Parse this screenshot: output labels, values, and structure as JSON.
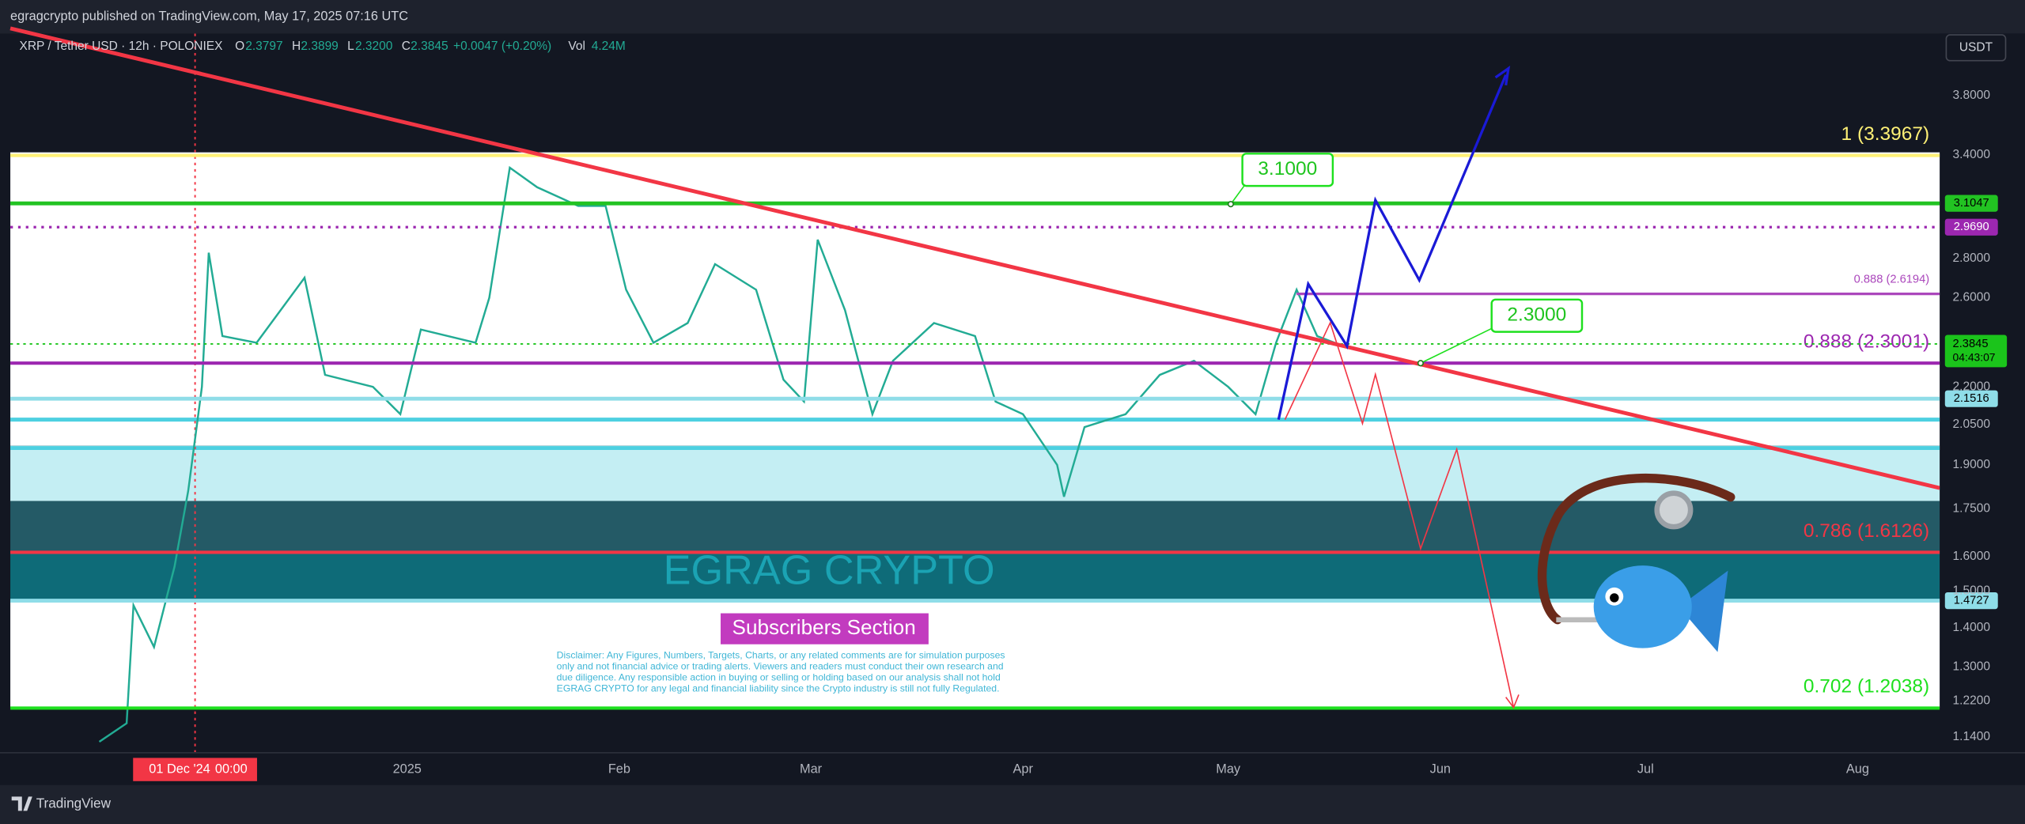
{
  "chart_data": {
    "type": "line",
    "published": "egragcrypto published on TradingView.com, May 17, 2025 07:16 UTC",
    "title": "XRP / Tether USD · 12h · POLONIEX",
    "ohlc": [
      {
        "key": "O",
        "text": "2.3797"
      },
      {
        "key": "H",
        "text": "2.3899"
      },
      {
        "key": "L",
        "text": "2.3200"
      },
      {
        "key": "C",
        "text": "2.3845"
      }
    ],
    "change": "+0.0047 (+0.20%)",
    "volume": {
      "key": "Vol",
      "text": "4.24M"
    },
    "currency": "USDT",
    "x": [
      "2024-11-17",
      "2024-11-21",
      "2024-11-22",
      "2024-11-25",
      "2024-11-28",
      "2024-11-30",
      "2024-12-02",
      "2024-12-03",
      "2024-12-05",
      "2024-12-10",
      "2024-12-17",
      "2024-12-20",
      "2024-12-27",
      "2024-12-31",
      "2025-01-03",
      "2025-01-11",
      "2025-01-13",
      "2025-01-16",
      "2025-01-20",
      "2025-01-26",
      "2025-01-30",
      "2025-02-02",
      "2025-02-06",
      "2025-02-11",
      "2025-02-15",
      "2025-02-21",
      "2025-02-25",
      "2025-02-28",
      "2025-03-02",
      "2025-03-06",
      "2025-03-10",
      "2025-03-13",
      "2025-03-19",
      "2025-03-25",
      "2025-03-28",
      "2025-04-01",
      "2025-04-06",
      "2025-04-07",
      "2025-04-10",
      "2025-04-16",
      "2025-04-21",
      "2025-04-26",
      "2025-05-01",
      "2025-05-05",
      "2025-05-08",
      "2025-05-11",
      "2025-05-14",
      "2025-05-17"
    ],
    "series": [
      {
        "name": "XRP / Tether USD",
        "color": "#22ab94",
        "values": [
          1.13,
          1.17,
          1.46,
          1.35,
          1.57,
          1.81,
          2.2,
          2.83,
          2.42,
          2.39,
          2.7,
          2.25,
          2.2,
          2.09,
          2.45,
          2.39,
          2.6,
          3.32,
          3.2,
          3.09,
          3.09,
          2.64,
          2.39,
          2.48,
          2.77,
          2.64,
          2.23,
          2.14,
          2.9,
          2.54,
          2.09,
          2.31,
          2.48,
          2.42,
          2.14,
          2.09,
          1.9,
          1.79,
          2.04,
          2.09,
          2.25,
          2.31,
          2.2,
          2.09,
          2.39,
          2.64,
          2.42,
          2.3845
        ]
      }
    ],
    "xlim": [
      "2024-11-04",
      "2025-08-13"
    ],
    "xticks": [
      {
        "value": "2025-01-01",
        "label": "2025"
      },
      {
        "value": "2025-02-01",
        "label": "Feb"
      },
      {
        "value": "2025-03-01",
        "label": "Mar"
      },
      {
        "value": "2025-04-01",
        "label": "Apr"
      },
      {
        "value": "2025-05-01",
        "label": "May"
      },
      {
        "value": "2025-06-01",
        "label": "Jun"
      },
      {
        "value": "2025-07-01",
        "label": "Jul"
      },
      {
        "value": "2025-08-01",
        "label": "Aug"
      }
    ],
    "crosshair": {
      "value": "2024-12-01",
      "label": "01 Dec '24",
      "time": "00:00",
      "color": "#f23645"
    },
    "ylim": [
      1.107,
      4.27
    ],
    "log_scale": true,
    "yticks": [
      {
        "value": 3.8,
        "label": "3.8000"
      },
      {
        "value": 3.4,
        "label": "3.4000"
      },
      {
        "value": 2.8,
        "label": "2.8000"
      },
      {
        "value": 2.6,
        "label": "2.6000"
      },
      {
        "value": 2.2,
        "label": "2.2000"
      },
      {
        "value": 2.05,
        "label": "2.0500"
      },
      {
        "value": 1.9,
        "label": "1.9000"
      },
      {
        "value": 1.75,
        "label": "1.7500"
      },
      {
        "value": 1.6,
        "label": "1.6000"
      },
      {
        "value": 1.5,
        "label": "1.5000"
      },
      {
        "value": 1.4,
        "label": "1.4000"
      },
      {
        "value": 1.3,
        "label": "1.3000"
      },
      {
        "value": 1.22,
        "label": "1.2200"
      },
      {
        "value": 1.14,
        "label": "1.1400"
      }
    ],
    "fib_levels": [
      {
        "value": 3.3967,
        "label": "1 (3.3967)",
        "color": "#fff176",
        "style": "solid",
        "size": "large"
      },
      {
        "value": 2.6194,
        "label": "0.888 (2.6194)",
        "color": "#ab47bc",
        "style": "partial",
        "size": "small"
      },
      {
        "value": 2.3001,
        "label": "0.888 (2.3001)",
        "color": "#9c27b0",
        "style": "solid",
        "size": "large"
      },
      {
        "value": 1.6126,
        "label": "0.786 (1.6126)",
        "color": "#f23645",
        "style": "solid",
        "size": "large"
      },
      {
        "value": 1.2038,
        "label": "0.702 (1.2038)",
        "color": "#1ee01e",
        "style": "solid",
        "size": "large"
      }
    ],
    "price_badges": [
      {
        "value": 3.1047,
        "label": "3.1047",
        "color": "#22c322",
        "text_color": "#000000",
        "line": "solid"
      },
      {
        "value": 2.969,
        "label": "2.9690",
        "color": "#9c27b0",
        "text_color": "#ffffff",
        "line": "dotted"
      },
      {
        "value": 2.1516,
        "label": "2.1516",
        "color": "#8fdde8",
        "text_color": "#000000",
        "line": "solid"
      },
      {
        "value": 1.4727,
        "label": "1.4727",
        "color": "#8fdde8",
        "text_color": "#000000",
        "line": "solid"
      }
    ],
    "last_price": {
      "value": 2.3845,
      "label": "2.3845",
      "countdown": "04:43:07",
      "color": "#1bc41b"
    },
    "annotations": [
      {
        "value": 3.1,
        "label": "3.1000"
      },
      {
        "value": 2.3,
        "label": "2.3000"
      }
    ],
    "watermark": "EGRAG CRYPTO",
    "section": "Subscribers Section",
    "disclaimer": [
      "Disclaimer: Any Figures, Numbers, Targets, Charts, or any related comments are for simulation purposes",
      "only and not financial advice or trading alerts. Viewers and readers must conduct their own research and",
      "due diligence. Any responsible action in buying or selling or holding based on our analysis shall not hold",
      "EGRAG CRYPTO for any legal and financial liability since the Crypto industry is still not fully Regulated."
    ],
    "brand": "TradingView"
  }
}
